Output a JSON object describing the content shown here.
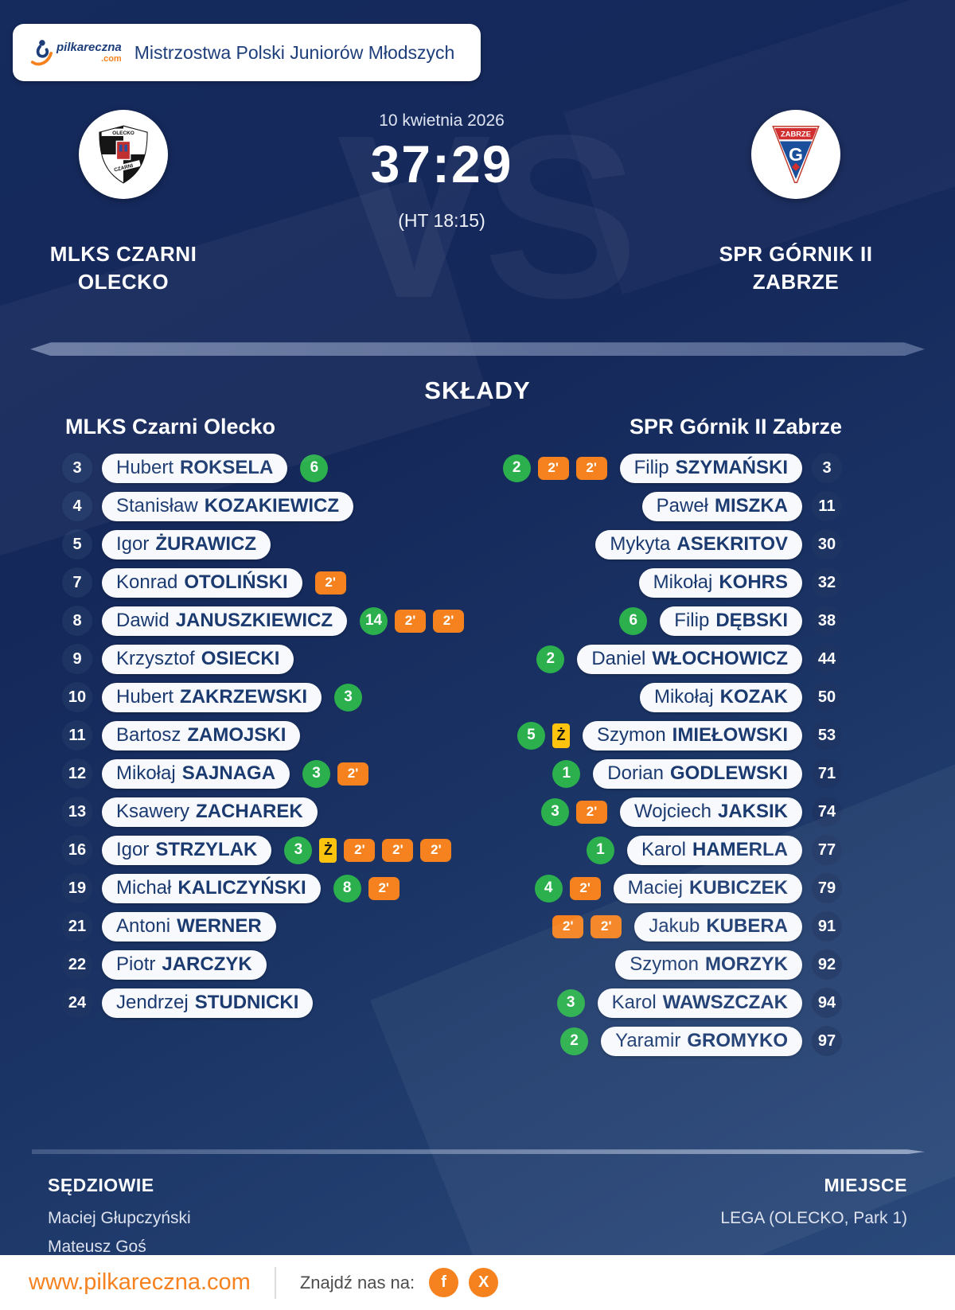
{
  "header": {
    "logo_main": "pilkareczna",
    "logo_com": ".com",
    "title": "Mistrzostwa Polski Juniorów Młodszych"
  },
  "match": {
    "date": "10 kwietnia 2026",
    "score": "37:29",
    "halftime": "(HT 18:15)",
    "vs_watermark": "VS"
  },
  "teams": {
    "home": {
      "line1": "MLKS CZARNI",
      "line2": "OLECKO",
      "crest": {
        "top": "OLECKO",
        "middle": "CZARNI"
      }
    },
    "away": {
      "line1": "SPR GÓRNIK II",
      "line2": "ZABRZE",
      "crest": {
        "band": "ZABRZE",
        "letter": "G"
      }
    }
  },
  "lineups": {
    "section_title": "SKŁADY",
    "home_header": "MLKS Czarni Olecko",
    "away_header": "SPR Górnik II Zabrze",
    "home_players": [
      {
        "number": "3",
        "first": "Hubert",
        "last": "ROKSELA",
        "badges": [
          {
            "type": "goals",
            "label": "6"
          }
        ]
      },
      {
        "number": "4",
        "first": "Stanisław",
        "last": "KOZAKIEWICZ",
        "badges": []
      },
      {
        "number": "5",
        "first": "Igor",
        "last": "ŻURAWICZ",
        "badges": []
      },
      {
        "number": "7",
        "first": "Konrad",
        "last": "OTOLIŃSKI",
        "badges": [
          {
            "type": "suspension",
            "label": "2'"
          }
        ]
      },
      {
        "number": "8",
        "first": "Dawid",
        "last": "JANUSZKIEWICZ",
        "badges": [
          {
            "type": "goals",
            "label": "14"
          },
          {
            "type": "suspension",
            "label": "2'"
          },
          {
            "type": "suspension",
            "label": "2'"
          }
        ]
      },
      {
        "number": "9",
        "first": "Krzysztof",
        "last": "OSIECKI",
        "badges": []
      },
      {
        "number": "10",
        "first": "Hubert",
        "last": "ZAKRZEWSKI",
        "badges": [
          {
            "type": "goals",
            "label": "3"
          }
        ]
      },
      {
        "number": "11",
        "first": "Bartosz",
        "last": "ZAMOJSKI",
        "badges": []
      },
      {
        "number": "12",
        "first": "Mikołaj",
        "last": "SAJNAGA",
        "badges": [
          {
            "type": "goals",
            "label": "3"
          },
          {
            "type": "suspension",
            "label": "2'"
          }
        ]
      },
      {
        "number": "13",
        "first": "Ksawery",
        "last": "ZACHAREK",
        "badges": []
      },
      {
        "number": "16",
        "first": "Igor",
        "last": "STRZYLAK",
        "badges": [
          {
            "type": "goals",
            "label": "3"
          },
          {
            "type": "yellow-card",
            "label": "Ż"
          },
          {
            "type": "suspension",
            "label": "2'"
          },
          {
            "type": "suspension",
            "label": "2'"
          },
          {
            "type": "suspension",
            "label": "2'"
          }
        ]
      },
      {
        "number": "19",
        "first": "Michał",
        "last": "KALICZYŃSKI",
        "badges": [
          {
            "type": "goals",
            "label": "8"
          },
          {
            "type": "suspension",
            "label": "2'"
          }
        ]
      },
      {
        "number": "21",
        "first": "Antoni",
        "last": "WERNER",
        "badges": []
      },
      {
        "number": "22",
        "first": "Piotr",
        "last": "JARCZYK",
        "badges": []
      },
      {
        "number": "24",
        "first": "Jendrzej",
        "last": "STUDNICKI",
        "badges": []
      }
    ],
    "away_players": [
      {
        "number": "3",
        "first": "Filip",
        "last": "SZYMAŃSKI",
        "badges": [
          {
            "type": "goals",
            "label": "2"
          },
          {
            "type": "suspension",
            "label": "2'"
          },
          {
            "type": "suspension",
            "label": "2'"
          }
        ]
      },
      {
        "number": "11",
        "first": "Paweł",
        "last": "MISZKA",
        "badges": []
      },
      {
        "number": "30",
        "first": "Mykyta",
        "last": "ASEKRITOV",
        "badges": []
      },
      {
        "number": "32",
        "first": "Mikołaj",
        "last": "KOHRS",
        "badges": []
      },
      {
        "number": "38",
        "first": "Filip",
        "last": "DĘBSKI",
        "badges": [
          {
            "type": "goals",
            "label": "6"
          }
        ]
      },
      {
        "number": "44",
        "first": "Daniel",
        "last": "WŁOCHOWICZ",
        "badges": [
          {
            "type": "goals",
            "label": "2"
          }
        ]
      },
      {
        "number": "50",
        "first": "Mikołaj",
        "last": "KOZAK",
        "badges": []
      },
      {
        "number": "53",
        "first": "Szymon",
        "last": "IMIEŁOWSKI",
        "badges": [
          {
            "type": "goals",
            "label": "5"
          },
          {
            "type": "yellow-card",
            "label": "Ż"
          }
        ]
      },
      {
        "number": "71",
        "first": "Dorian",
        "last": "GODLEWSKI",
        "badges": [
          {
            "type": "goals",
            "label": "1"
          }
        ]
      },
      {
        "number": "74",
        "first": "Wojciech",
        "last": "JAKSIK",
        "badges": [
          {
            "type": "goals",
            "label": "3"
          },
          {
            "type": "suspension",
            "label": "2'"
          }
        ]
      },
      {
        "number": "77",
        "first": "Karol",
        "last": "HAMERLA",
        "badges": [
          {
            "type": "goals",
            "label": "1"
          }
        ]
      },
      {
        "number": "79",
        "first": "Maciej",
        "last": "KUBICZEK",
        "badges": [
          {
            "type": "goals",
            "label": "4"
          },
          {
            "type": "suspension",
            "label": "2'"
          }
        ]
      },
      {
        "number": "91",
        "first": "Jakub",
        "last": "KUBERA",
        "badges": [
          {
            "type": "suspension",
            "label": "2'"
          },
          {
            "type": "suspension",
            "label": "2'"
          }
        ]
      },
      {
        "number": "92",
        "first": "Szymon",
        "last": "MORZYK",
        "badges": []
      },
      {
        "number": "94",
        "first": "Karol",
        "last": "WAWSZCZAK",
        "badges": [
          {
            "type": "goals",
            "label": "3"
          }
        ]
      },
      {
        "number": "97",
        "first": "Yaramir",
        "last": "GROMYKO",
        "badges": [
          {
            "type": "goals",
            "label": "2"
          }
        ]
      }
    ]
  },
  "meta": {
    "referees_label": "SĘDZIOWIE",
    "referees": [
      "Maciej Głupczyński",
      "Mateusz Goś"
    ],
    "venue_label": "MIEJSCE",
    "venue": "LEGA (OLECKO, Park 1)"
  },
  "footer": {
    "website": "www.pilkareczna.com",
    "social_label": "Znajdź nas na:",
    "social": [
      {
        "name": "facebook",
        "glyph": "f"
      },
      {
        "name": "x",
        "glyph": "X"
      }
    ]
  },
  "colors": {
    "goal_green": "#2BB04D",
    "suspension_orange": "#F5821F",
    "yellow_card": "#FCC30F",
    "brand_orange": "#F5821F",
    "navy_text": "#1C3A70",
    "background_navy": "#15285A"
  }
}
